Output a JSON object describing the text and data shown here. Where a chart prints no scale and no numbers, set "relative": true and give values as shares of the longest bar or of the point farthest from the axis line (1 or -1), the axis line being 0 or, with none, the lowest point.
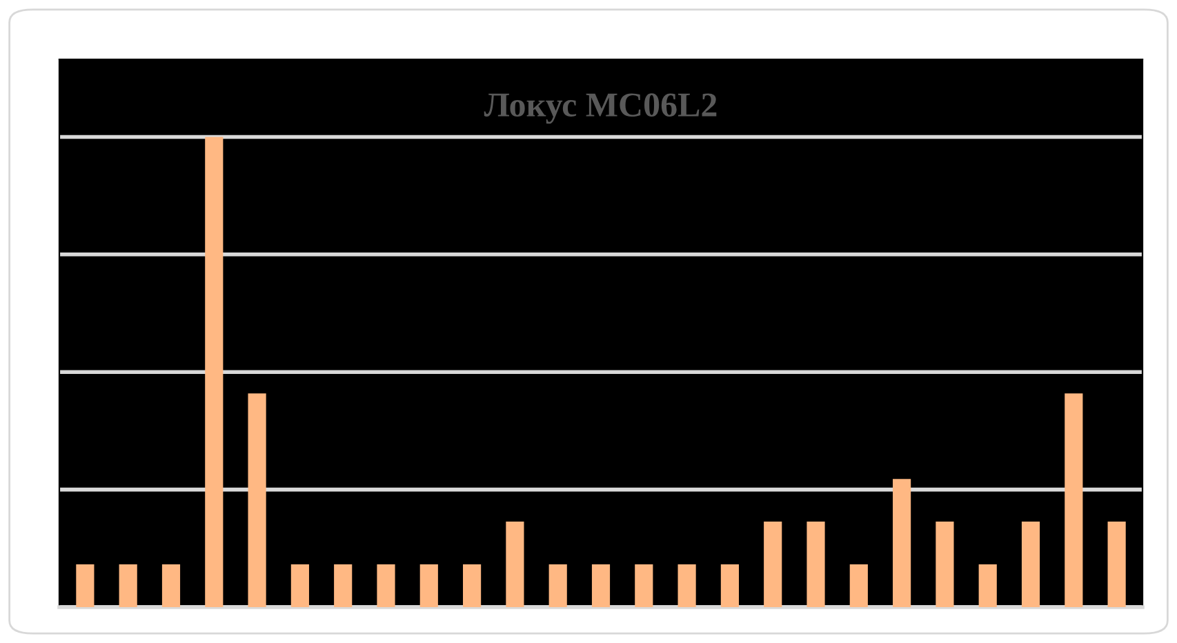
{
  "chart_data": {
    "type": "bar",
    "title": "Локус MC06L2",
    "relative": true,
    "grid": "y",
    "color": "#ffb883",
    "categories": [
      null,
      null,
      null,
      null,
      null,
      null,
      null,
      null,
      null,
      null,
      null,
      null,
      null,
      null,
      null,
      null,
      null,
      null,
      null,
      null,
      null,
      null,
      null,
      null,
      null
    ],
    "values": [
      0.0909,
      0.0909,
      0.0909,
      1,
      0.4545,
      0.0909,
      0.0909,
      0.0909,
      0.0909,
      0.0909,
      0.1818,
      0.0909,
      0.0909,
      0.0909,
      0.0909,
      0.0909,
      0.1818,
      0.1818,
      0.0909,
      0.2727,
      0.1818,
      0.0909,
      0.1818,
      0.4545,
      0.1818
    ]
  }
}
